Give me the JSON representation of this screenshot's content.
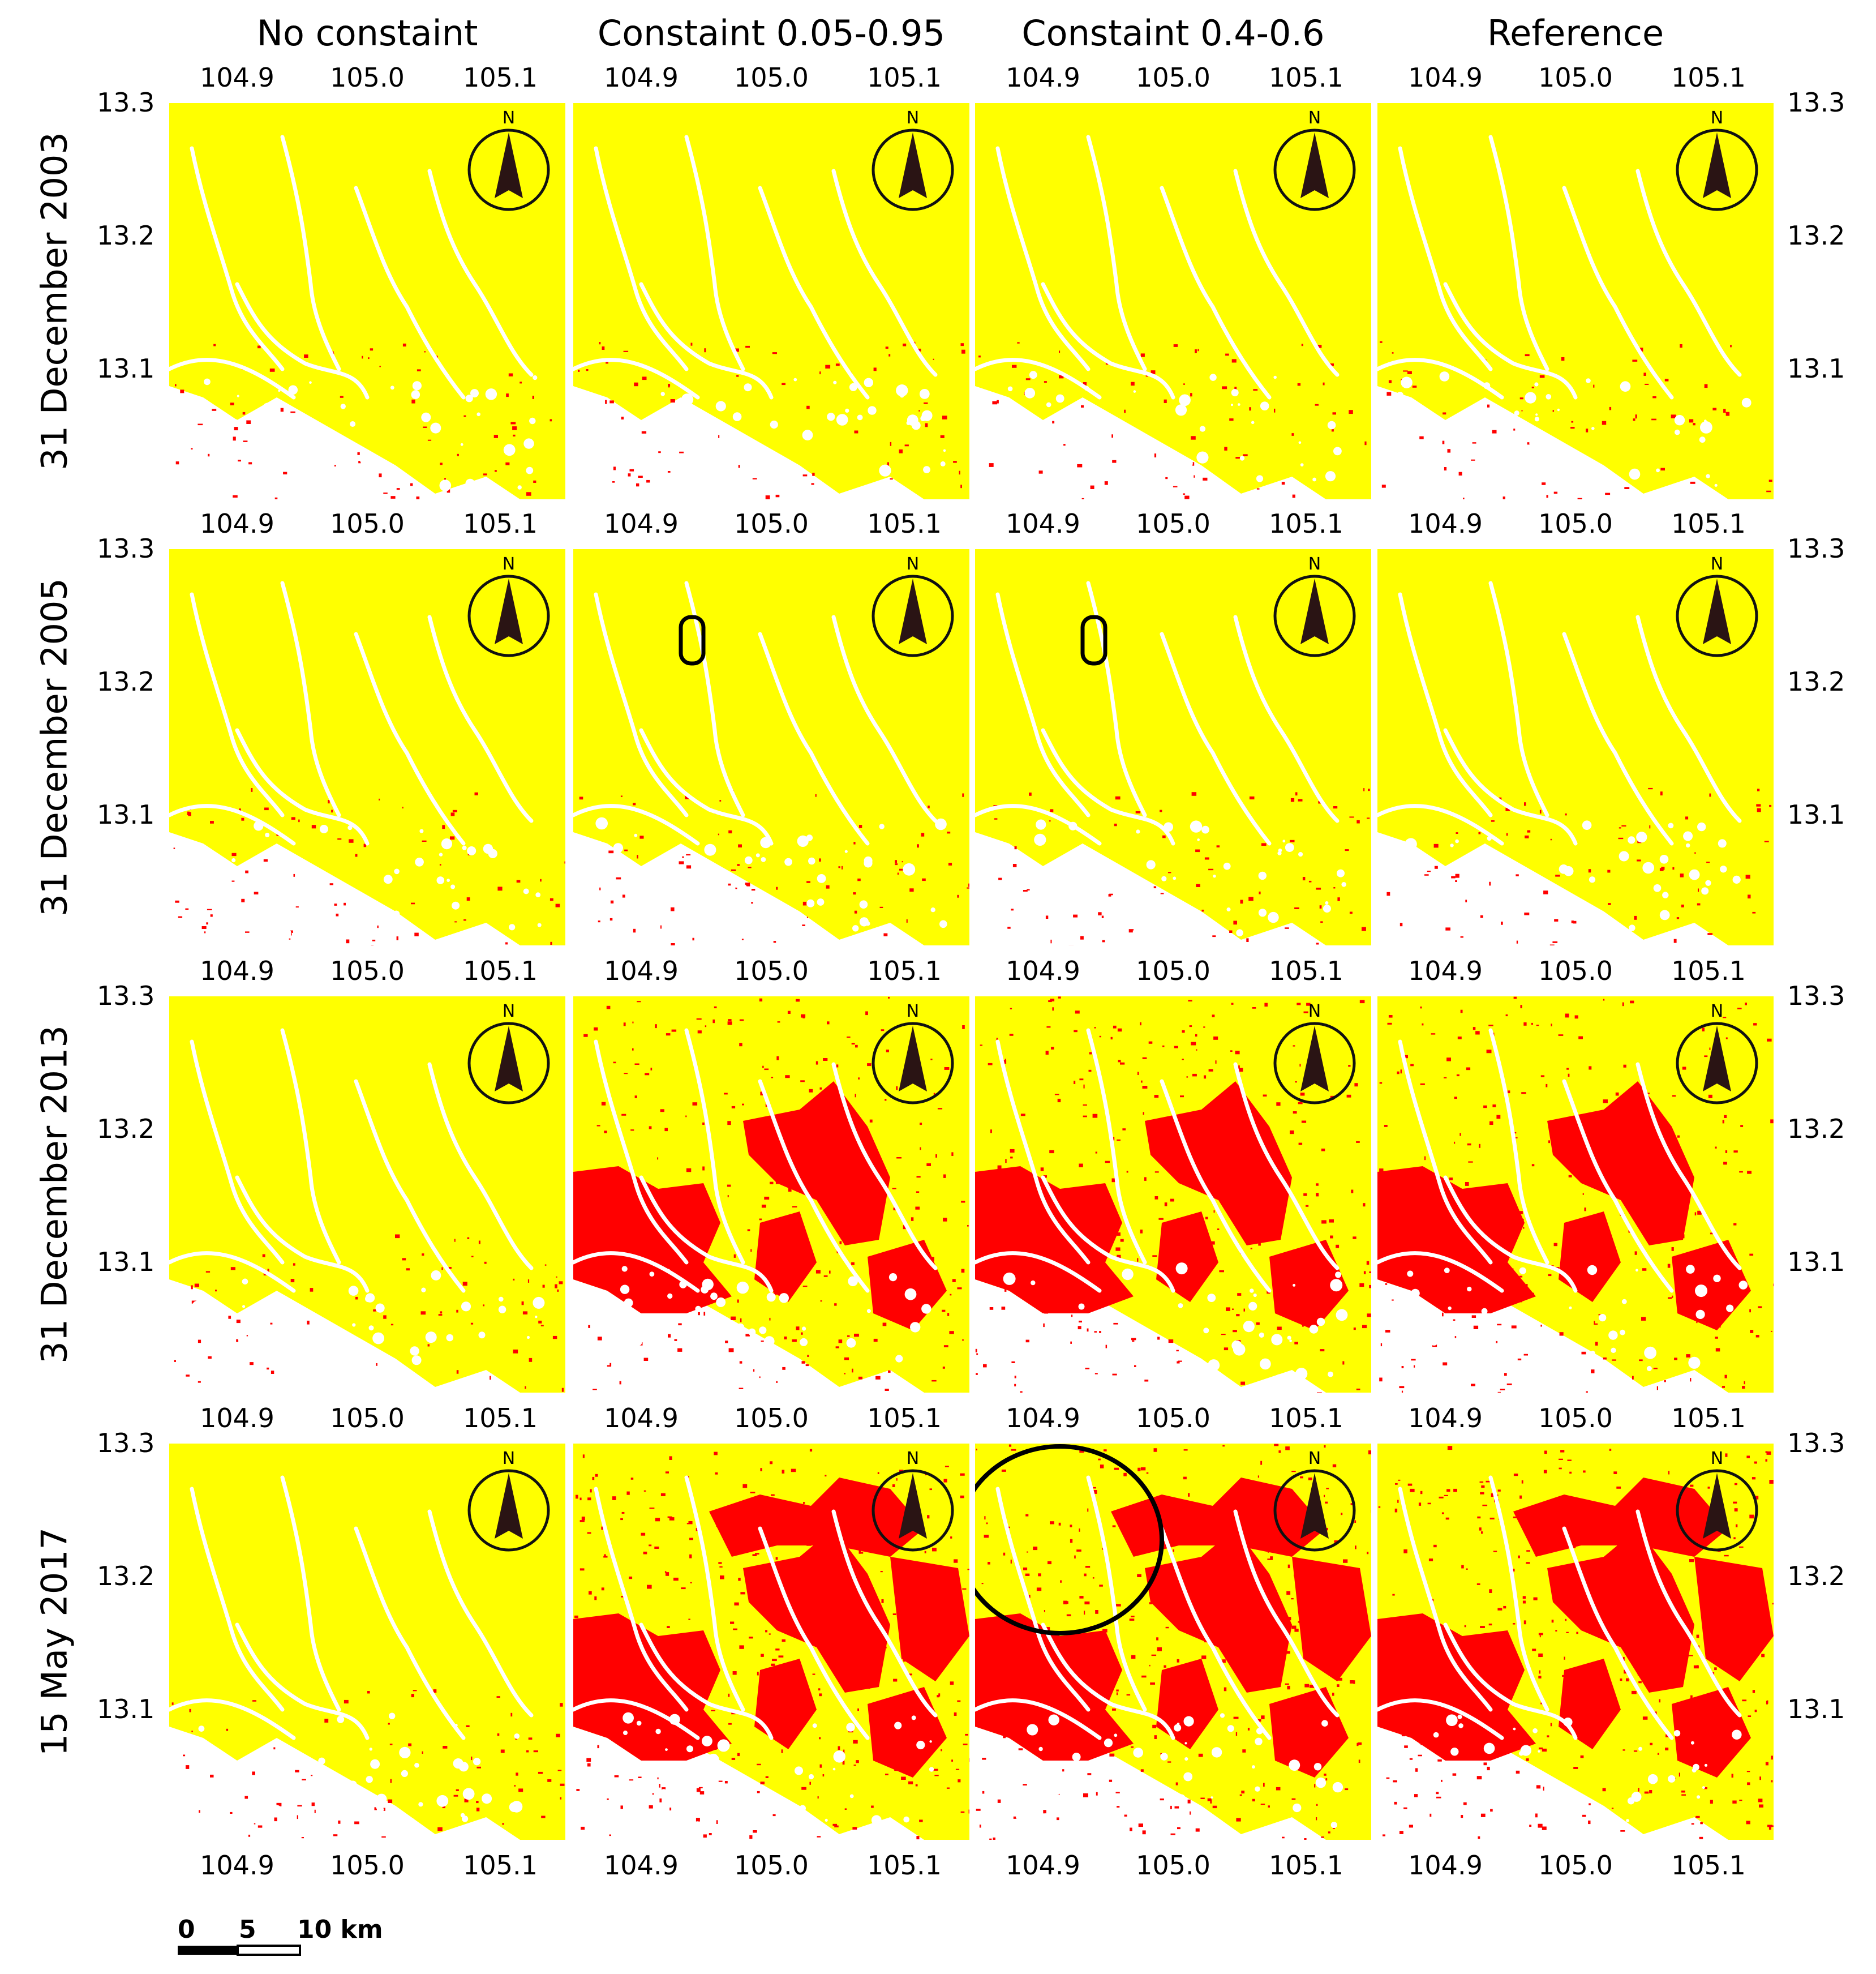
{
  "columns": [
    "No constaint",
    "Constaint 0.05-0.95",
    "Constaint 0.4-0.6",
    "Reference"
  ],
  "rows": [
    "31 December 2003",
    "31 December 2005",
    "31 December 2013",
    "15 May 2017"
  ],
  "axes": {
    "longitude_ticks": [
      "104.9",
      "105.0",
      "105.1"
    ],
    "latitude_ticks": [
      "13.3",
      "13.2",
      "13.1"
    ]
  },
  "north_arrow": {
    "label": "N"
  },
  "scale_bar": {
    "labels": [
      "0",
      "5",
      "10 km"
    ]
  },
  "colors": {
    "class_a": "#ffff00",
    "class_b": "#ff0000",
    "background": "#ffffff",
    "arrow": "#2a1414"
  },
  "panels": [
    [
      {
        "red_level": 0.02
      },
      {
        "red_level": 0.02
      },
      {
        "red_level": 0.02
      },
      {
        "red_level": 0.02
      }
    ],
    [
      {
        "red_level": 0.03
      },
      {
        "red_level": 0.03,
        "marker": "small-rounded-rect"
      },
      {
        "red_level": 0.03,
        "marker": "small-rounded-rect"
      },
      {
        "red_level": 0.03
      }
    ],
    [
      {
        "red_level": 0.03
      },
      {
        "red_level": 0.45
      },
      {
        "red_level": 0.45
      },
      {
        "red_level": 0.45
      }
    ],
    [
      {
        "red_level": 0.04
      },
      {
        "red_level": 0.65
      },
      {
        "red_level": 0.62,
        "marker": "large-circle"
      },
      {
        "red_level": 0.65
      }
    ]
  ]
}
